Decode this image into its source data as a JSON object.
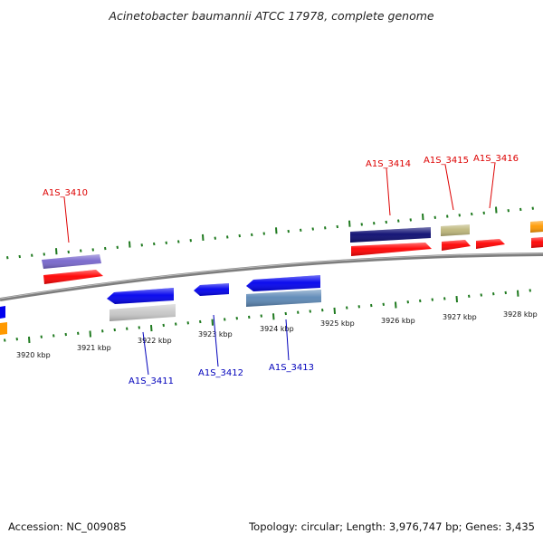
{
  "title": "Acinetobacter baumannii ATCC 17978, complete genome",
  "footer": {
    "accession": "Accession: NC_009085",
    "stats": "Topology: circular; Length: 3,976,747 bp; Genes: 3,435"
  },
  "axis_labels": [
    "3920 kbp",
    "3921 kbp",
    "3922 kbp",
    "3923 kbp",
    "3924 kbp",
    "3925 kbp",
    "3926 kbp",
    "3927 kbp",
    "3928 kbp"
  ],
  "gene_tags_forward": [
    "A1S_3410",
    "A1S_3414",
    "A1S_3415",
    "A1S_3416"
  ],
  "gene_tags_reverse": [
    "A1S_3411",
    "A1S_3412",
    "A1S_3413"
  ],
  "colors": {
    "forward_tag": "#dd0000",
    "reverse_tag": "#0000bb",
    "tick": "#1f7a1f",
    "backbone": "#888888",
    "red": "#ff0000",
    "blue": "#0000ee",
    "purple": "#7766cc",
    "navy": "#0a0a70",
    "olive": "#bdb67a",
    "orange": "#ff9900",
    "silver": "#c8c8c8",
    "steel": "#5c88b6"
  }
}
